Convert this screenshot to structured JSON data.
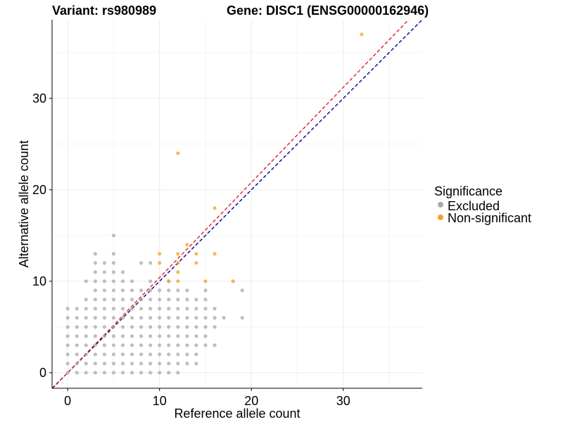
{
  "chart_data": {
    "type": "scatter",
    "title_left": "Variant: rs980989",
    "title_right": "Gene: DISC1 (ENSG00000162946)",
    "xlabel": "Reference allele count",
    "ylabel": "Alternative allele count",
    "xlim": [
      -1.7,
      38.6
    ],
    "ylim": [
      -1.7,
      38.6
    ],
    "xticks": [
      0,
      10,
      20,
      30
    ],
    "yticks": [
      0,
      10,
      20,
      30
    ],
    "grid": true,
    "legend": {
      "title": "Significance",
      "placement": "right",
      "entries": [
        {
          "label": "Excluded",
          "color": "#aaaaaa"
        },
        {
          "label": "Non-significant",
          "color": "#f5a020"
        }
      ]
    },
    "reference_lines": [
      {
        "style": "dashed",
        "color": "#000080",
        "intercept": 0,
        "slope": 1
      },
      {
        "style": "dashed",
        "color": "#e02020",
        "intercept": 0,
        "slope": 1.04
      }
    ],
    "series": [
      {
        "name": "Excluded",
        "color": "#aaaaaa",
        "points": [
          [
            0,
            0
          ],
          [
            0,
            1
          ],
          [
            0,
            2
          ],
          [
            0,
            3
          ],
          [
            0,
            4
          ],
          [
            0,
            5
          ],
          [
            0,
            6
          ],
          [
            0,
            7
          ],
          [
            1,
            0
          ],
          [
            1,
            1
          ],
          [
            1,
            2
          ],
          [
            1,
            3
          ],
          [
            1,
            4
          ],
          [
            1,
            5
          ],
          [
            1,
            6
          ],
          [
            1,
            7
          ],
          [
            2,
            0
          ],
          [
            2,
            1
          ],
          [
            2,
            2
          ],
          [
            2,
            3
          ],
          [
            2,
            4
          ],
          [
            2,
            5
          ],
          [
            2,
            6
          ],
          [
            2,
            7
          ],
          [
            2,
            8
          ],
          [
            2,
            10
          ],
          [
            3,
            0
          ],
          [
            3,
            1
          ],
          [
            3,
            2
          ],
          [
            3,
            3
          ],
          [
            3,
            4
          ],
          [
            3,
            5
          ],
          [
            3,
            6
          ],
          [
            3,
            7
          ],
          [
            3,
            8
          ],
          [
            3,
            9
          ],
          [
            3,
            10
          ],
          [
            3,
            11
          ],
          [
            3,
            12
          ],
          [
            3,
            13
          ],
          [
            4,
            0
          ],
          [
            4,
            1
          ],
          [
            4,
            2
          ],
          [
            4,
            3
          ],
          [
            4,
            4
          ],
          [
            4,
            5
          ],
          [
            4,
            6
          ],
          [
            4,
            7
          ],
          [
            4,
            8
          ],
          [
            4,
            9
          ],
          [
            4,
            10
          ],
          [
            4,
            11
          ],
          [
            4,
            12
          ],
          [
            5,
            0
          ],
          [
            5,
            1
          ],
          [
            5,
            2
          ],
          [
            5,
            3
          ],
          [
            5,
            4
          ],
          [
            5,
            5
          ],
          [
            5,
            6
          ],
          [
            5,
            7
          ],
          [
            5,
            8
          ],
          [
            5,
            9
          ],
          [
            5,
            10
          ],
          [
            5,
            11
          ],
          [
            5,
            12
          ],
          [
            5,
            13
          ],
          [
            5,
            15
          ],
          [
            6,
            0
          ],
          [
            6,
            1
          ],
          [
            6,
            2
          ],
          [
            6,
            3
          ],
          [
            6,
            4
          ],
          [
            6,
            5
          ],
          [
            6,
            6
          ],
          [
            6,
            7
          ],
          [
            6,
            8
          ],
          [
            6,
            9
          ],
          [
            6,
            10
          ],
          [
            6,
            11
          ],
          [
            7,
            0
          ],
          [
            7,
            1
          ],
          [
            7,
            2
          ],
          [
            7,
            3
          ],
          [
            7,
            4
          ],
          [
            7,
            5
          ],
          [
            7,
            6
          ],
          [
            7,
            7
          ],
          [
            7,
            8
          ],
          [
            7,
            9
          ],
          [
            7,
            10
          ],
          [
            8,
            0
          ],
          [
            8,
            1
          ],
          [
            8,
            2
          ],
          [
            8,
            3
          ],
          [
            8,
            4
          ],
          [
            8,
            5
          ],
          [
            8,
            6
          ],
          [
            8,
            7
          ],
          [
            8,
            8
          ],
          [
            8,
            9
          ],
          [
            8,
            12
          ],
          [
            9,
            0
          ],
          [
            9,
            1
          ],
          [
            9,
            2
          ],
          [
            9,
            3
          ],
          [
            9,
            4
          ],
          [
            9,
            5
          ],
          [
            9,
            6
          ],
          [
            9,
            7
          ],
          [
            9,
            8
          ],
          [
            9,
            9
          ],
          [
            9,
            10
          ],
          [
            9,
            12
          ],
          [
            10,
            0
          ],
          [
            10,
            1
          ],
          [
            10,
            2
          ],
          [
            10,
            3
          ],
          [
            10,
            4
          ],
          [
            10,
            5
          ],
          [
            10,
            6
          ],
          [
            10,
            7
          ],
          [
            10,
            8
          ],
          [
            10,
            9
          ],
          [
            11,
            0
          ],
          [
            11,
            1
          ],
          [
            11,
            2
          ],
          [
            11,
            3
          ],
          [
            11,
            4
          ],
          [
            11,
            5
          ],
          [
            11,
            6
          ],
          [
            11,
            7
          ],
          [
            11,
            8
          ],
          [
            11,
            9
          ],
          [
            11,
            10
          ],
          [
            12,
            0
          ],
          [
            12,
            1
          ],
          [
            12,
            2
          ],
          [
            12,
            3
          ],
          [
            12,
            4
          ],
          [
            12,
            5
          ],
          [
            12,
            6
          ],
          [
            12,
            7
          ],
          [
            12,
            8
          ],
          [
            12,
            9
          ],
          [
            13,
            1
          ],
          [
            13,
            2
          ],
          [
            13,
            3
          ],
          [
            13,
            4
          ],
          [
            13,
            5
          ],
          [
            13,
            6
          ],
          [
            13,
            7
          ],
          [
            13,
            8
          ],
          [
            13,
            9
          ],
          [
            14,
            2
          ],
          [
            14,
            3
          ],
          [
            14,
            4
          ],
          [
            14,
            5
          ],
          [
            14,
            6
          ],
          [
            14,
            7
          ],
          [
            14,
            8
          ],
          [
            14,
            1
          ],
          [
            15,
            3
          ],
          [
            15,
            4
          ],
          [
            15,
            5
          ],
          [
            15,
            6
          ],
          [
            15,
            7
          ],
          [
            15,
            8
          ],
          [
            15,
            9
          ],
          [
            16,
            3
          ],
          [
            16,
            5
          ],
          [
            16,
            6
          ],
          [
            16,
            7
          ],
          [
            17,
            6
          ],
          [
            19,
            6
          ],
          [
            19,
            9
          ]
        ]
      },
      {
        "name": "Non-significant",
        "color": "#f5a020",
        "points": [
          [
            10,
            12
          ],
          [
            10,
            13
          ],
          [
            11,
            10
          ],
          [
            12,
            10
          ],
          [
            12,
            11
          ],
          [
            12,
            12
          ],
          [
            12,
            13
          ],
          [
            12,
            24
          ],
          [
            13,
            14
          ],
          [
            14,
            12
          ],
          [
            14,
            13
          ],
          [
            15,
            10
          ],
          [
            16,
            13
          ],
          [
            16,
            18
          ],
          [
            18,
            10
          ],
          [
            32,
            37
          ]
        ]
      }
    ]
  }
}
